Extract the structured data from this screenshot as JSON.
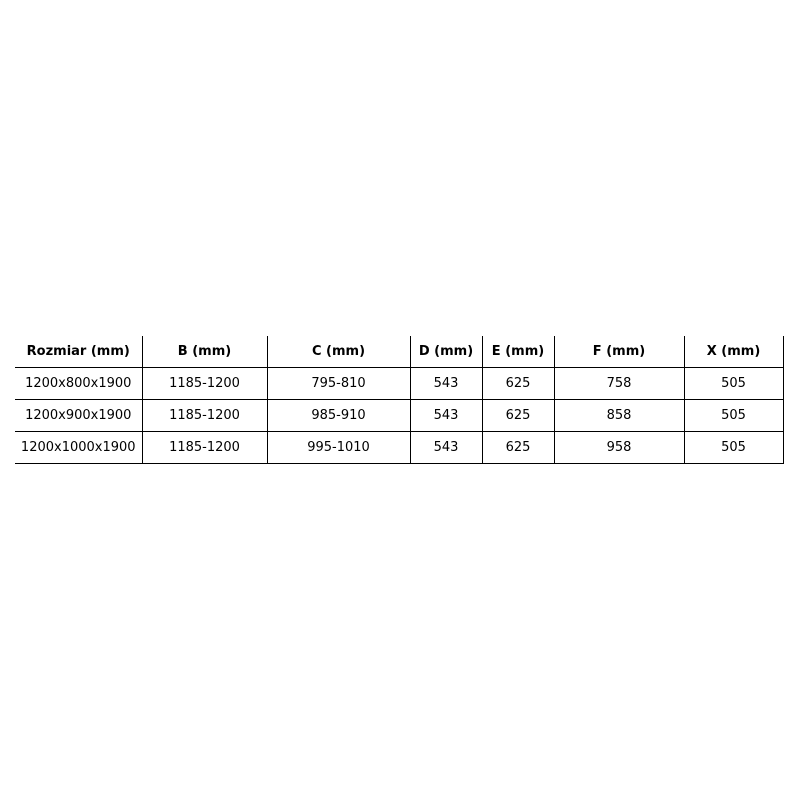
{
  "table": {
    "headers": [
      "Rozmiar (mm)",
      "B (mm)",
      "C (mm)",
      "D (mm)",
      "E (mm)",
      "F (mm)",
      "X (mm)"
    ],
    "rows": [
      [
        "1200x800x1900",
        "1185-1200",
        "795-810",
        "543",
        "625",
        "758",
        "505"
      ],
      [
        "1200x900x1900",
        "1185-1200",
        "985-910",
        "543",
        "625",
        "858",
        "505"
      ],
      [
        "1200x1000x1900",
        "1185-1200",
        "995-1010",
        "543",
        "625",
        "958",
        "505"
      ]
    ]
  }
}
